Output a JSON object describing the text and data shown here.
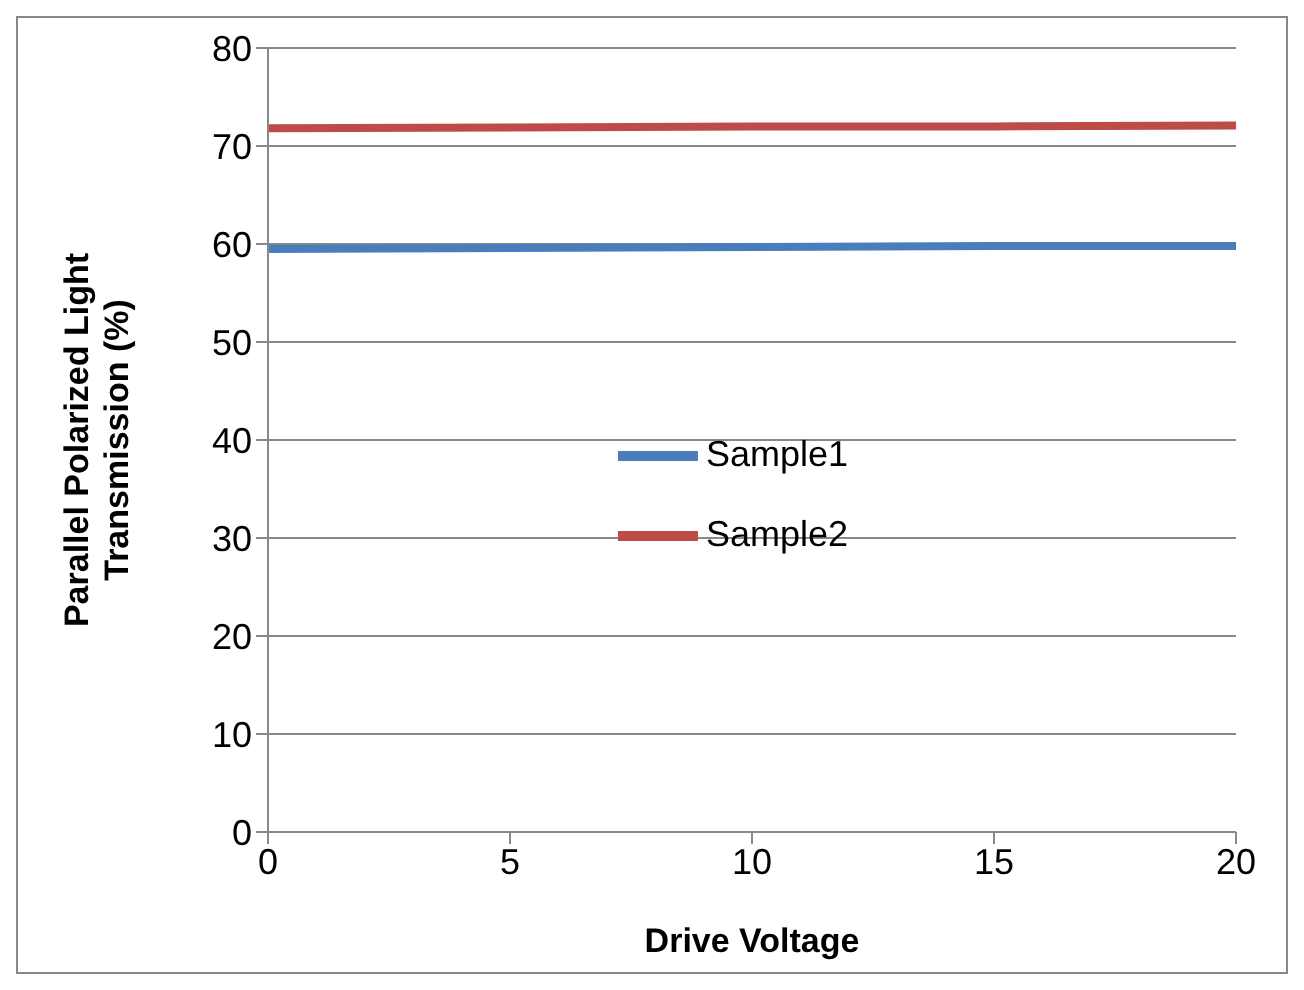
{
  "chart_data": {
    "type": "line",
    "xlabel": "Drive Voltage",
    "ylabel": "Parallel Polarized Light Transmission (%)",
    "x": [
      0,
      5,
      10,
      15,
      20
    ],
    "series": [
      {
        "name": "Sample1",
        "color": "#4a7ebb",
        "values": [
          59.5,
          59.6,
          59.7,
          59.8,
          59.8
        ]
      },
      {
        "name": "Sample2",
        "color": "#be4b48",
        "values": [
          71.8,
          71.9,
          72.0,
          72.0,
          72.1
        ]
      }
    ],
    "xlim": [
      0,
      20
    ],
    "xticks": [
      0,
      5,
      10,
      15,
      20
    ],
    "ylim": [
      0,
      80
    ],
    "yticks": [
      0,
      10,
      20,
      30,
      40,
      50,
      60,
      70,
      80
    ],
    "grid": "y",
    "legend": "center",
    "marker": "none",
    "line_style": "solid"
  }
}
